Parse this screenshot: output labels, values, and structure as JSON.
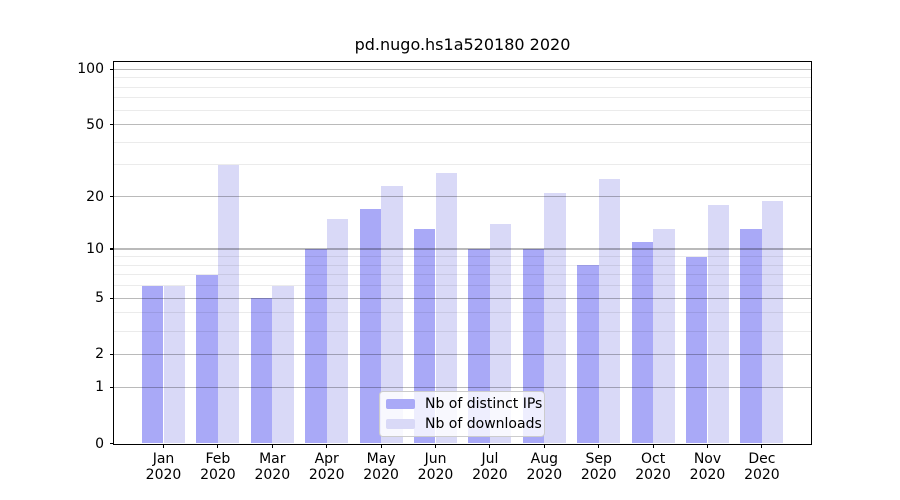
{
  "chart_data": {
    "type": "bar",
    "title": "pd.nugo.hs1a520180 2020",
    "x": [
      "Jan",
      "Feb",
      "Mar",
      "Apr",
      "May",
      "Jun",
      "Jul",
      "Aug",
      "Sep",
      "Oct",
      "Nov",
      "Dec"
    ],
    "x_year": "2020",
    "series": [
      {
        "name": "Nb of distinct IPs",
        "color": "#a9a9f7",
        "values": [
          6,
          7,
          5,
          10,
          17,
          13,
          10,
          10,
          8,
          11,
          9,
          13
        ]
      },
      {
        "name": "Nb of downloads",
        "color": "#d9d9f7",
        "values": [
          6,
          30,
          6,
          15,
          23,
          27,
          14,
          21,
          25,
          13,
          18,
          19
        ]
      }
    ],
    "y_scale": "log1p",
    "y_axis_max": 110,
    "y_ticks": [
      100,
      50,
      20,
      10,
      5,
      2,
      1,
      0
    ],
    "y_minor_ticks": [
      3,
      4,
      6,
      7,
      8,
      9,
      30,
      40,
      60,
      70,
      80,
      90
    ],
    "grid": true,
    "legend_position": "bottom-center",
    "colors": {
      "major_grid": "rgba(0,0,0,0.27)",
      "minor_grid": "rgba(0,0,0,0.08)",
      "spine": "#000000",
      "background": "#ffffff"
    }
  }
}
